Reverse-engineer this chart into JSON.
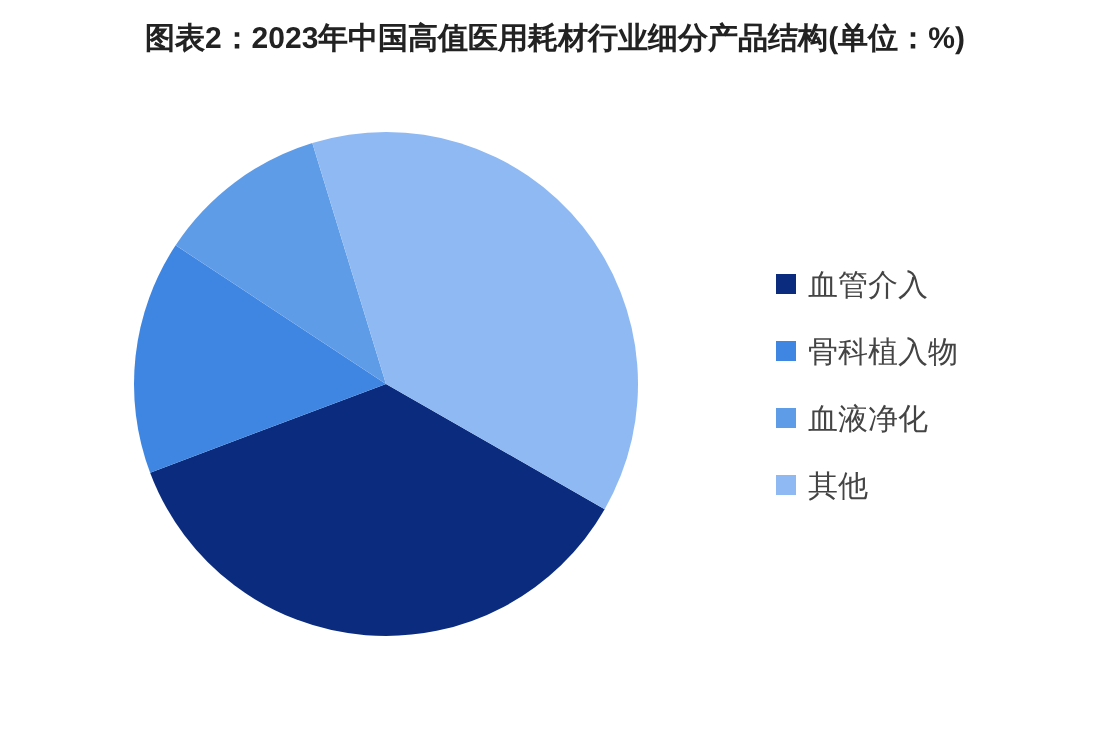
{
  "chart_data": {
    "type": "pie",
    "title": "图表2：2023年中国高值医用耗材行业细分产品结构(单位：%)",
    "categories": [
      "血管介入",
      "骨科植入物",
      "血液净化",
      "其他"
    ],
    "values": [
      36,
      15,
      11,
      38
    ],
    "colors": [
      "#0b2c7e",
      "#3f86e2",
      "#5f9ce8",
      "#8fb9f2"
    ],
    "legend": "right"
  }
}
